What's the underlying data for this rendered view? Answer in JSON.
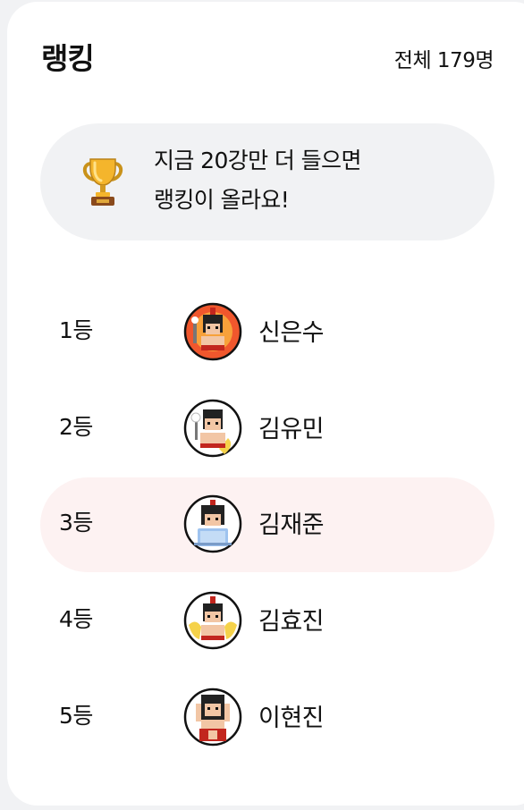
{
  "header": {
    "title": "랭킹",
    "total": "전체 179명"
  },
  "notice": {
    "icon": "trophy-icon",
    "line1": "지금 20강만 더 들으면",
    "line2": "랭킹이 올라요!"
  },
  "ranking": [
    {
      "rank": "1등",
      "name": "신은수",
      "avatar_bg": "#f0572d",
      "highlight": false
    },
    {
      "rank": "2등",
      "name": "김유민",
      "avatar_bg": "#ffffff",
      "highlight": false
    },
    {
      "rank": "3등",
      "name": "김재준",
      "avatar_bg": "#ffffff",
      "highlight": true
    },
    {
      "rank": "4등",
      "name": "김효진",
      "avatar_bg": "#ffffff",
      "highlight": false
    },
    {
      "rank": "5등",
      "name": "이현진",
      "avatar_bg": "#ffffff",
      "highlight": false
    }
  ],
  "colors": {
    "page_bg": "#f1f2f4",
    "card_bg": "#ffffff",
    "highlight_row": "#fdf2f2",
    "text": "#111111"
  }
}
